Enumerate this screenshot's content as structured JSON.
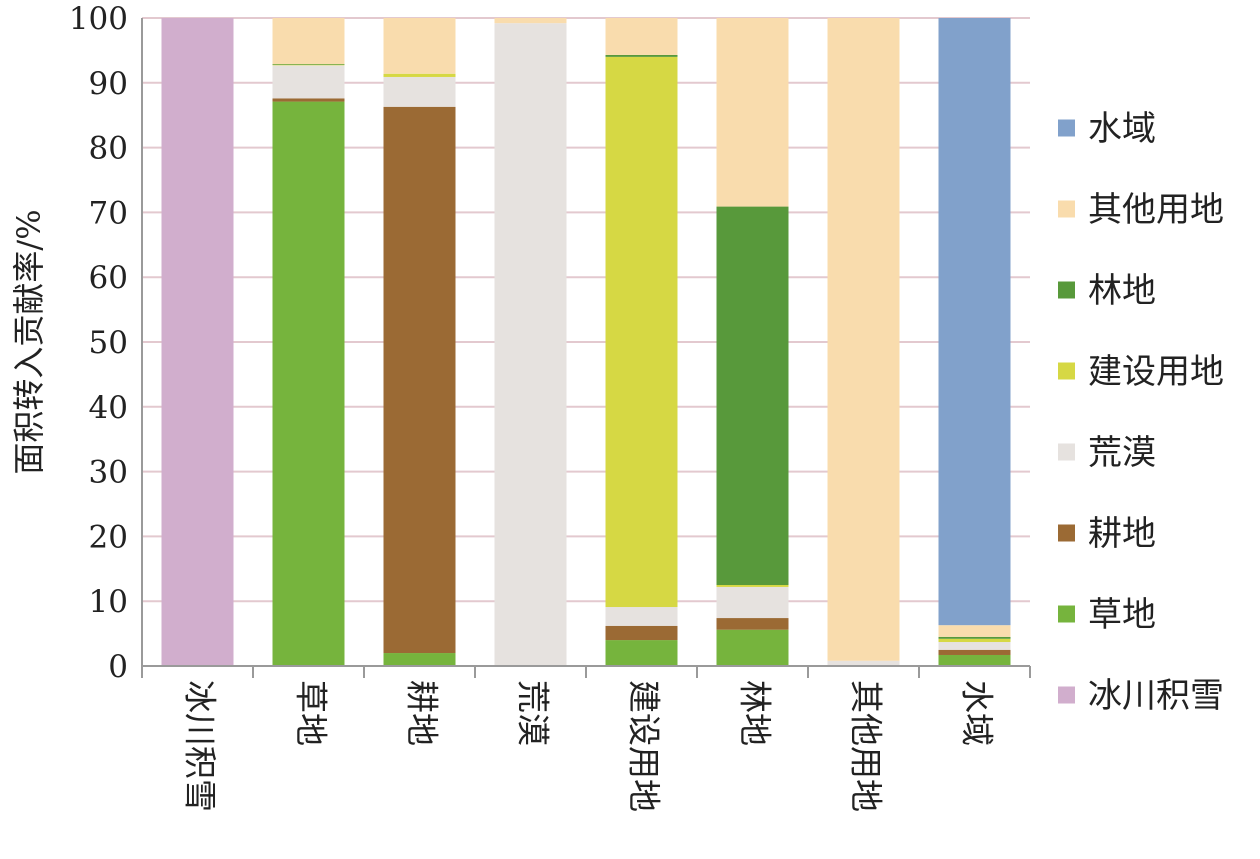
{
  "chart_data": {
    "type": "bar",
    "stacked": true,
    "title": "",
    "xlabel": "",
    "ylabel": "面积转入贡献率/%",
    "ylim": [
      0,
      100
    ],
    "yticks": [
      0,
      10,
      20,
      30,
      40,
      50,
      60,
      70,
      80,
      90,
      100
    ],
    "grid": true,
    "legend_position": "right",
    "categories": [
      "冰川积雪",
      "草地",
      "耕地",
      "荒漠",
      "建设用地",
      "林地",
      "其他用地",
      "水域"
    ],
    "series": [
      {
        "name": "冰川积雪",
        "color": "#d1aecd",
        "values": [
          100,
          0,
          0,
          0,
          0,
          0,
          0,
          0
        ]
      },
      {
        "name": "草地",
        "color": "#76b43d",
        "values": [
          0,
          87.1,
          2.0,
          0,
          4.0,
          5.6,
          0,
          1.7
        ]
      },
      {
        "name": "耕地",
        "color": "#9b6a34",
        "values": [
          0,
          0.5,
          84.3,
          0,
          2.2,
          1.8,
          0,
          0.8
        ]
      },
      {
        "name": "荒漠",
        "color": "#e6e2df",
        "values": [
          0,
          5.1,
          4.6,
          99.2,
          2.9,
          4.8,
          0.8,
          1.2
        ]
      },
      {
        "name": "建设用地",
        "color": "#d6d844",
        "values": [
          0,
          0.1,
          0.5,
          0,
          84.9,
          0.3,
          0,
          0.5
        ]
      },
      {
        "name": "林地",
        "color": "#58993b",
        "values": [
          0,
          0.1,
          0,
          0,
          0.3,
          58.4,
          0,
          0.3
        ]
      },
      {
        "name": "其他用地",
        "color": "#f9dcad",
        "values": [
          0,
          7.1,
          8.6,
          0.8,
          5.7,
          29.1,
          99.2,
          1.8
        ]
      },
      {
        "name": "水域",
        "color": "#81a1cb",
        "values": [
          0,
          0,
          0,
          0,
          0,
          0,
          0,
          93.7
        ]
      }
    ],
    "legend_order": [
      "水域",
      "其他用地",
      "林地",
      "建设用地",
      "荒漠",
      "耕地",
      "草地",
      "冰川积雪"
    ]
  }
}
